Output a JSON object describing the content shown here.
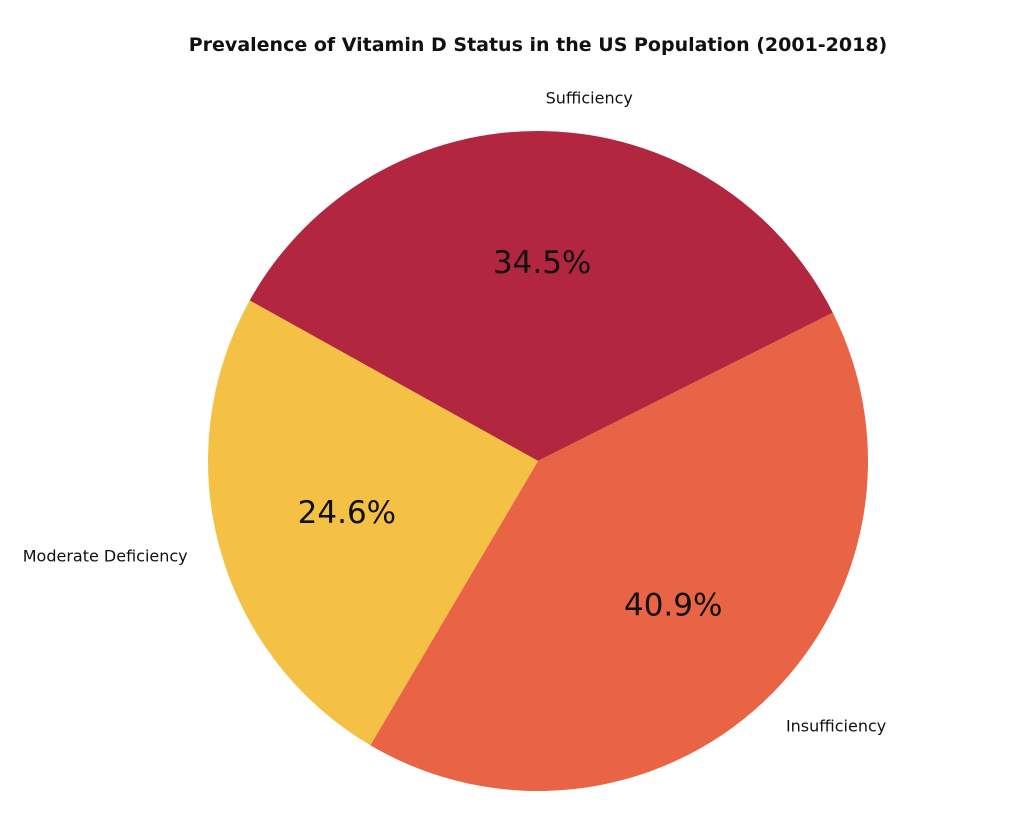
{
  "chart_data": {
    "type": "pie",
    "title": "Prevalence of Vitamin D Status in the US Population (2001-2018)",
    "slices": [
      {
        "label": "Sufficiency",
        "value": 34.5,
        "pct_label": "34.5%",
        "color": "#B22640"
      },
      {
        "label": "Insufficiency",
        "value": 40.9,
        "pct_label": "40.9%",
        "color": "#E96444"
      },
      {
        "label": "Moderate Deficiency",
        "value": 24.6,
        "pct_label": "24.6%",
        "color": "#F4C145"
      }
    ],
    "start_angle_deg": 150.9,
    "direction": "clockwise",
    "legend": "none"
  }
}
